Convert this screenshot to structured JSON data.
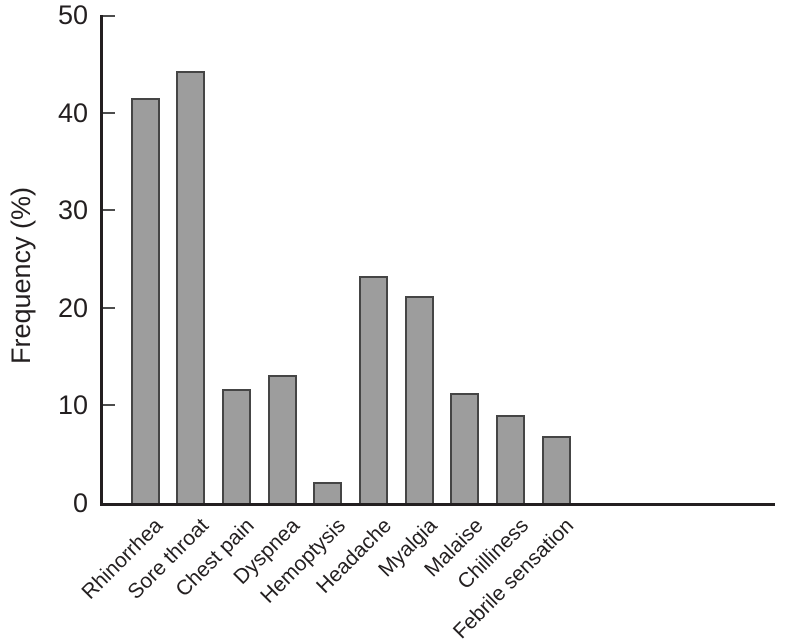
{
  "figure": {
    "background": "#ffffff",
    "bar_fill": "#9d9d9d",
    "bar_border": "#454545",
    "axis_color": "#231f20"
  },
  "chart_data": {
    "type": "bar",
    "title": "",
    "xlabel": "",
    "ylabel": "Frequency (%)",
    "ylim": [
      0,
      50
    ],
    "yticks": [
      0,
      10,
      20,
      30,
      40,
      50
    ],
    "grid": false,
    "legend": "none",
    "bar_orientation": "vertical",
    "x_label_rotation_deg": 45,
    "categories": [
      "Rhinorrhea",
      "Sore throat",
      "Chest pain",
      "Dyspnea",
      "Hemoptysis",
      "Headache",
      "Myalgia",
      "Malaise",
      "Chilliness",
      "Febrile sensation"
    ],
    "values": [
      41.5,
      44.3,
      11.7,
      13.1,
      2.2,
      23.3,
      21.2,
      11.3,
      9.0,
      6.9
    ]
  }
}
